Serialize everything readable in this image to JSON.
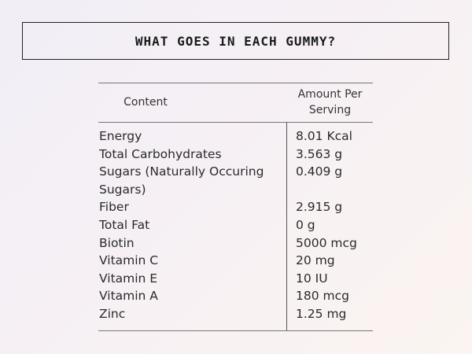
{
  "title": "WHAT GOES IN EACH GUMMY?",
  "table": {
    "headers": {
      "content": "Content",
      "amount": "Amount Per Serving"
    },
    "rows": [
      {
        "content": "Energy",
        "amount": "8.01 Kcal"
      },
      {
        "content": "Total Carbohydrates",
        "amount": "3.563 g"
      },
      {
        "content": "Sugars (Naturally Occuring Sugars)",
        "amount": "0.409 g"
      },
      {
        "content": "Fiber",
        "amount": "2.915 g"
      },
      {
        "content": "Total Fat",
        "amount": "0 g"
      },
      {
        "content": "Biotin",
        "amount": "5000 mcg"
      },
      {
        "content": "Vitamin C",
        "amount": "20 mg"
      },
      {
        "content": "Vitamin E",
        "amount": "10 IU"
      },
      {
        "content": "Vitamin A",
        "amount": "180 mcg"
      },
      {
        "content": "Zinc",
        "amount": "1.25 mg"
      }
    ]
  }
}
